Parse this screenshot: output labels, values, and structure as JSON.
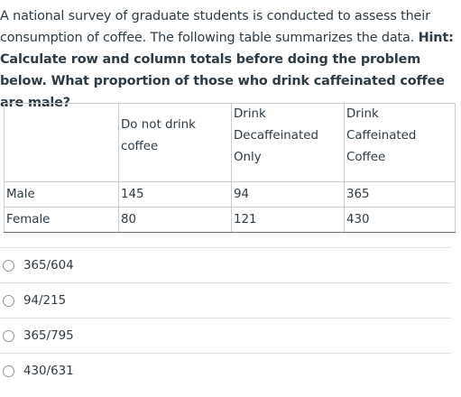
{
  "question": {
    "text_plain": "A national survey of graduate students is conducted to assess their consumption of coffee. The following table summarizes the data. ",
    "text_bold": "Hint: Calculate row and column totals before doing the problem below. What proportion of those who drink caffeinated coffee are male?"
  },
  "table": {
    "headers": [
      "",
      "Do not drink coffee",
      "Drink Decaffeinated Only",
      "Drink Caffeinated Coffee"
    ],
    "rows": [
      {
        "label": "Male",
        "values": [
          "145",
          "94",
          "365"
        ]
      },
      {
        "label": "Female",
        "values": [
          "80",
          "121",
          "430"
        ]
      }
    ]
  },
  "options": [
    {
      "label": "365/604"
    },
    {
      "label": "94/215"
    },
    {
      "label": "365/795"
    },
    {
      "label": "430/631"
    }
  ]
}
